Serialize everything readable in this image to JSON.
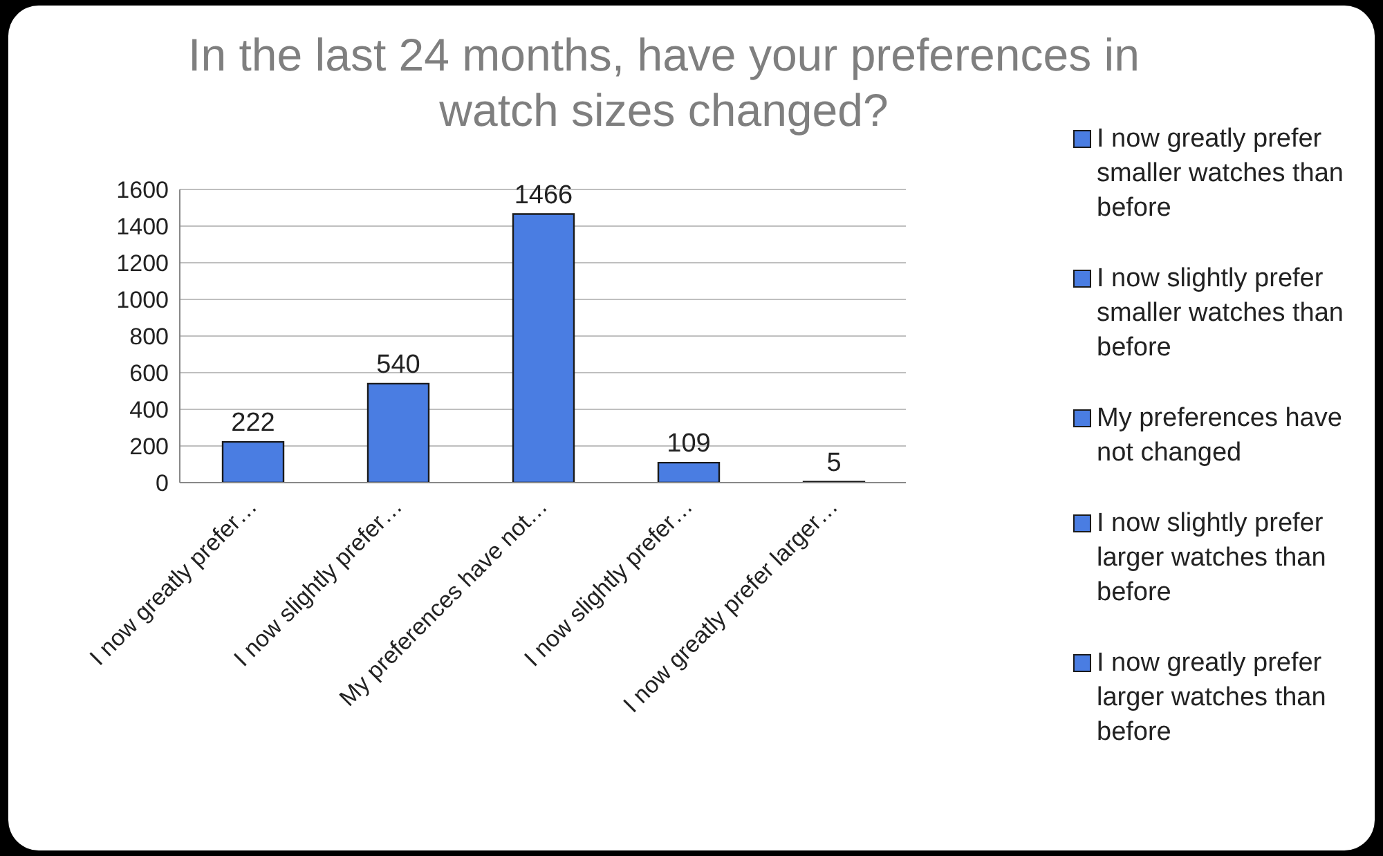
{
  "chart_data": {
    "type": "bar",
    "title": "In the last 24 months, have your preferences in watch sizes changed?",
    "categories": [
      "I now greatly prefer…",
      "I now slightly prefer…",
      "My preferences have not…",
      "I now slightly prefer…",
      "I now greatly prefer larger…"
    ],
    "stacked": true,
    "series": [
      {
        "name": "I now greatly prefer smaller watches than before",
        "color": "#4a7de2",
        "values": [
          222,
          null,
          null,
          null,
          null
        ]
      },
      {
        "name": "I now slightly prefer smaller watches than before",
        "color": "#4a7de2",
        "values": [
          null,
          540,
          null,
          null,
          null
        ]
      },
      {
        "name": "My preferences have not changed",
        "color": "#4a7de2",
        "values": [
          null,
          null,
          1466,
          null,
          null
        ]
      },
      {
        "name": "I now slightly prefer larger watches than before",
        "color": "#4a7de2",
        "values": [
          null,
          null,
          null,
          109,
          null
        ]
      },
      {
        "name": "I now greatly prefer larger watches than before",
        "color": "#4a7de2",
        "values": [
          null,
          null,
          null,
          null,
          5
        ]
      }
    ],
    "ylim": [
      0,
      1600
    ],
    "yticks": [
      0,
      200,
      400,
      600,
      800,
      1000,
      1200,
      1400,
      1600
    ],
    "grid": "y",
    "legend": "right",
    "data_labels": true
  }
}
